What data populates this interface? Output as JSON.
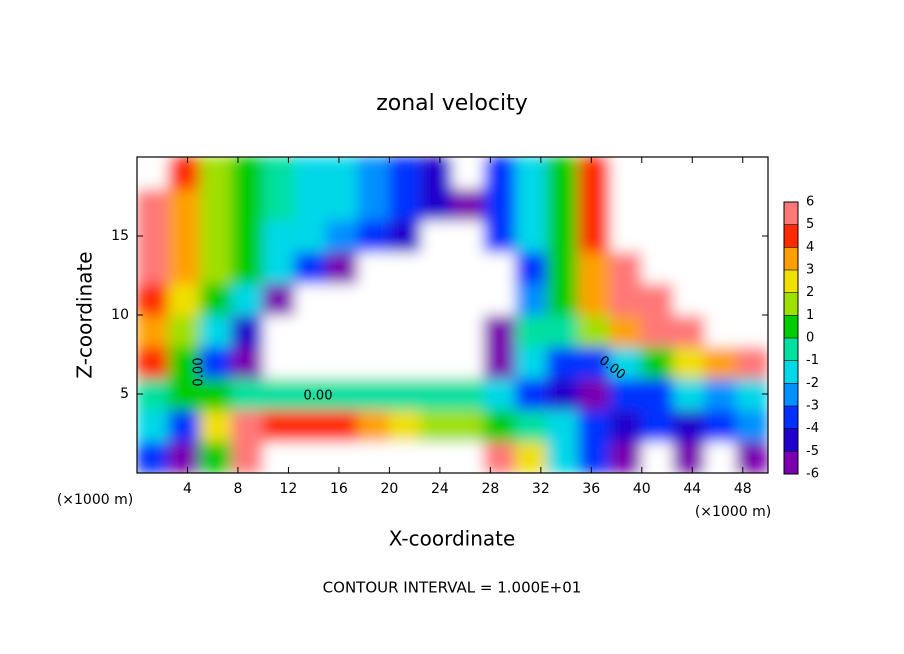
{
  "chart_data": {
    "type": "contour",
    "title": "zonal velocity",
    "xlabel": "X-coordinate",
    "ylabel": "Z-coordinate",
    "x_unit": "(×1000 m)",
    "footnote": "CONTOUR INTERVAL = 1.000E+01",
    "contour_levels": [
      {
        "value": 0,
        "label": "0.00"
      }
    ],
    "xlim": [
      0,
      50
    ],
    "ylim": [
      0,
      20
    ],
    "xticks": [
      4,
      8,
      12,
      16,
      20,
      24,
      28,
      32,
      36,
      40,
      44,
      48
    ],
    "yticks": [
      5,
      10,
      15
    ],
    "x": [
      1.25,
      3.75,
      6.25,
      8.75,
      11.25,
      13.75,
      16.25,
      18.75,
      21.25,
      23.75,
      26.25,
      28.75,
      31.25,
      33.75,
      36.25,
      38.75,
      41.25,
      43.75,
      46.25,
      48.75
    ],
    "y": [
      1,
      3,
      5,
      7,
      9,
      11,
      13,
      15,
      17,
      19
    ],
    "z": [
      [
        -4,
        -6,
        0,
        6,
        7,
        7,
        7,
        7,
        7,
        7,
        7,
        6,
        2,
        -2,
        -4,
        -6,
        -7,
        -6,
        -7,
        -6
      ],
      [
        -2,
        -4,
        2,
        5,
        4,
        4,
        4,
        3,
        2,
        1,
        1,
        0,
        -1,
        -2,
        -4,
        -5,
        -4,
        -5,
        -4,
        -3
      ],
      [
        -1,
        0,
        0,
        -1,
        -1,
        -1,
        -1,
        -1,
        -1,
        -1,
        -1,
        -2,
        -4,
        -5,
        -6,
        -4,
        -4,
        -2,
        -3,
        -2
      ],
      [
        4,
        0,
        -4,
        -6,
        -7,
        -7,
        -7,
        -7,
        -7,
        -7,
        -7,
        -6,
        -2,
        -4,
        -4,
        -2,
        0,
        2,
        3,
        5
      ],
      [
        3,
        1,
        -2,
        -5,
        -7,
        -7,
        -7,
        -7,
        -7,
        -7,
        -7,
        -6,
        -1,
        -1,
        1,
        3,
        5,
        6,
        7,
        7
      ],
      [
        4,
        2,
        0,
        -2,
        -6,
        -7,
        -7,
        -7,
        -7,
        -7,
        -7,
        -7,
        -3,
        0,
        3,
        5,
        6,
        7,
        7,
        7
      ],
      [
        5,
        3,
        1,
        0,
        -2,
        -4,
        -6,
        -7,
        -7,
        -7,
        -7,
        -7,
        -4,
        0,
        3,
        5,
        7,
        7,
        7,
        7
      ],
      [
        6,
        3,
        1,
        0,
        -2,
        -2,
        -3,
        -4,
        -5,
        -7,
        -7,
        -4,
        -2,
        0,
        4,
        7,
        7,
        7,
        7,
        7
      ],
      [
        6,
        3,
        1,
        0,
        -1,
        -2,
        -2,
        -3,
        -4,
        -5,
        -6,
        -4,
        -2,
        0,
        4,
        7,
        7,
        7,
        7,
        7
      ],
      [
        7,
        4,
        1,
        0,
        -1,
        -2,
        -2,
        -3,
        -4,
        -5,
        -7,
        -4,
        -2,
        0,
        4,
        7,
        7,
        7,
        7,
        7
      ]
    ],
    "colorbar": {
      "ticks": [
        -6,
        -5,
        -4,
        -3,
        -2,
        -1,
        0,
        1,
        2,
        3,
        4,
        5,
        6
      ],
      "colors": [
        "#7a00b0",
        "#2000cc",
        "#0030ff",
        "#0090ff",
        "#00d8e8",
        "#00e0a0",
        "#00cc00",
        "#a0e000",
        "#f0e000",
        "#ffa000",
        "#ff2a00",
        "#ff7878"
      ]
    }
  }
}
